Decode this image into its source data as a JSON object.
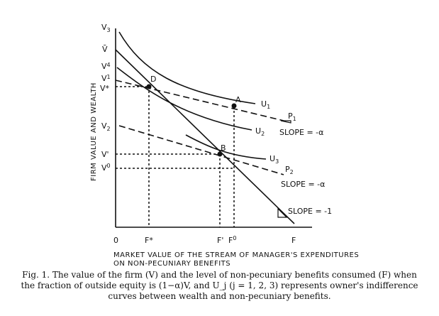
{
  "axes": {
    "ylabel": "FIRM VALUE AND WEALTH",
    "xlabel_line1": "MARKET VALUE OF THE STREAM OF MANAGER'S EXPENDITURES",
    "xlabel_line2": "ON NON-PECUNIARY BENEFITS"
  },
  "y_labels": {
    "v3_base": "V",
    "v3_sub": "3",
    "vbar": "V̄",
    "v4_base": "V",
    "v4_sub": "4",
    "v1_base": "V",
    "v1_sub": "1",
    "vstar": "V*",
    "v2_base": "V",
    "v2_sub": "2",
    "vprime": "V'",
    "v0_base": "V",
    "v0_sup": "0"
  },
  "x_labels": {
    "origin": "0",
    "fstar": "F*",
    "fprime": "F'",
    "f0_base": "F",
    "f0_sup": "0",
    "f": "F"
  },
  "points": {
    "d": "D",
    "a": "A",
    "b": "B"
  },
  "curve_labels": {
    "u1_base": "U",
    "u1_sub": "1",
    "u2_base": "U",
    "u2_sub": "2",
    "u3_base": "U",
    "u3_sub": "3",
    "p1_base": "P",
    "p1_sub": "1",
    "p2_base": "P",
    "p2_sub": "2"
  },
  "slopes": {
    "p1": "SLOPE = -α",
    "p2": "SLOPE = -α",
    "budget": "SLOPE = -1"
  },
  "caption": {
    "line1": "Fig. 1. The value of the firm (V) and the level of non-pecuniary benefits consumed (F) when",
    "line2": "the fraction of outside equity is (1−α)V, and U_j (j = 1, 2, 3) represents owner's indifference",
    "line3": "curves between wealth and non-pecuniary benefits."
  }
}
